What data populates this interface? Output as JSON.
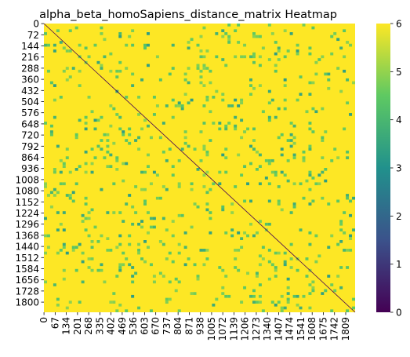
{
  "chart_data": {
    "type": "heatmap",
    "title": "alpha_beta_homoSapiens_distance_matrix Heatmap",
    "xlabel": "",
    "ylabel": "",
    "matrix_size": 1866,
    "value_range": [
      0,
      6
    ],
    "colormap": "viridis",
    "colormap_stops": [
      "#440154",
      "#3b528b",
      "#21918c",
      "#5ec962",
      "#fde725"
    ],
    "diagonal_value": 0,
    "typical_value": 6,
    "x_tick_labels": [
      "0",
      "67",
      "134",
      "201",
      "268",
      "335",
      "402",
      "469",
      "536",
      "603",
      "670",
      "737",
      "804",
      "871",
      "938",
      "1005",
      "1072",
      "1139",
      "1206",
      "1273",
      "1340",
      "1407",
      "1474",
      "1541",
      "1608",
      "1675",
      "1742",
      "1809"
    ],
    "y_tick_labels": [
      "0",
      "72",
      "144",
      "216",
      "288",
      "360",
      "432",
      "504",
      "576",
      "648",
      "720",
      "792",
      "864",
      "936",
      "1008",
      "1080",
      "1152",
      "1224",
      "1296",
      "1368",
      "1440",
      "1512",
      "1584",
      "1656",
      "1728",
      "1800"
    ],
    "colorbar_ticks": [
      0,
      1,
      2,
      3,
      4,
      5,
      6
    ]
  }
}
